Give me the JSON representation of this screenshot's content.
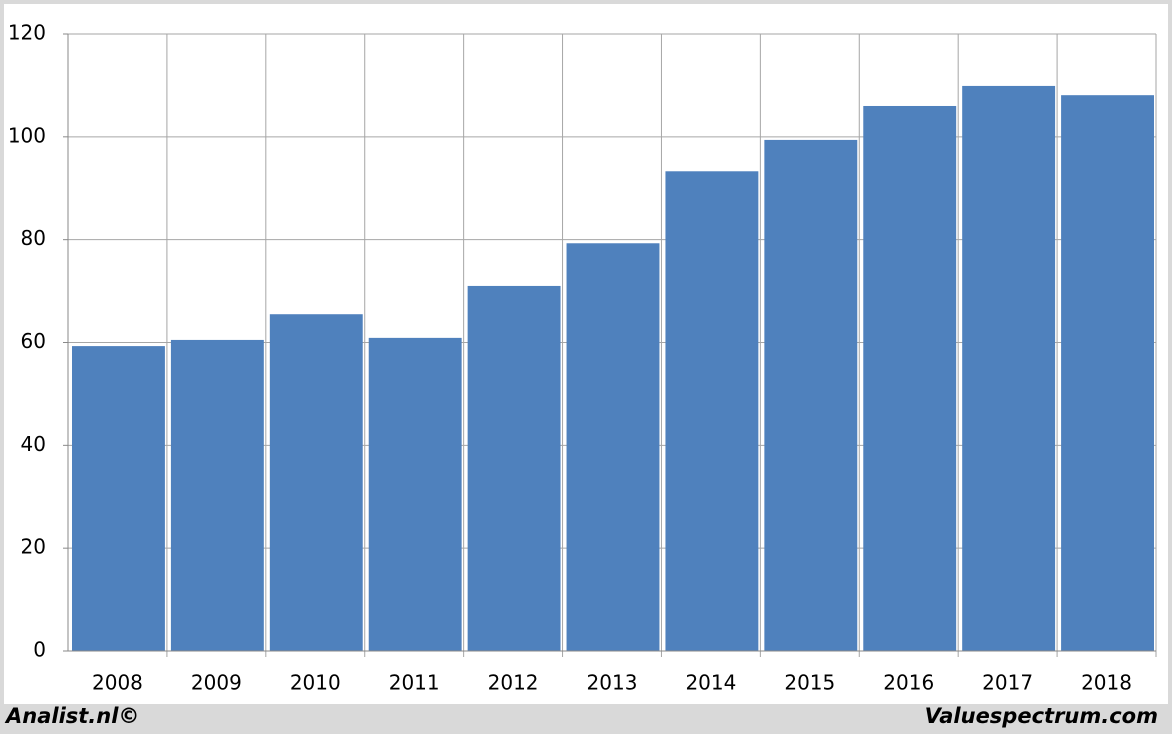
{
  "chart_data": {
    "type": "bar",
    "categories": [
      "2008",
      "2009",
      "2010",
      "2011",
      "2012",
      "2013",
      "2014",
      "2015",
      "2016",
      "2017",
      "2018"
    ],
    "values": [
      59.3,
      60.5,
      65.5,
      60.9,
      71.0,
      79.3,
      93.3,
      99.4,
      106.0,
      109.9,
      108.1
    ],
    "color": "#4f81bd",
    "ylim": [
      0,
      120
    ],
    "yticks": [
      0,
      20,
      40,
      60,
      80,
      100,
      120
    ],
    "grid": true,
    "source_left": "Analist.nl©",
    "source_right": "Valuespectrum.com"
  }
}
